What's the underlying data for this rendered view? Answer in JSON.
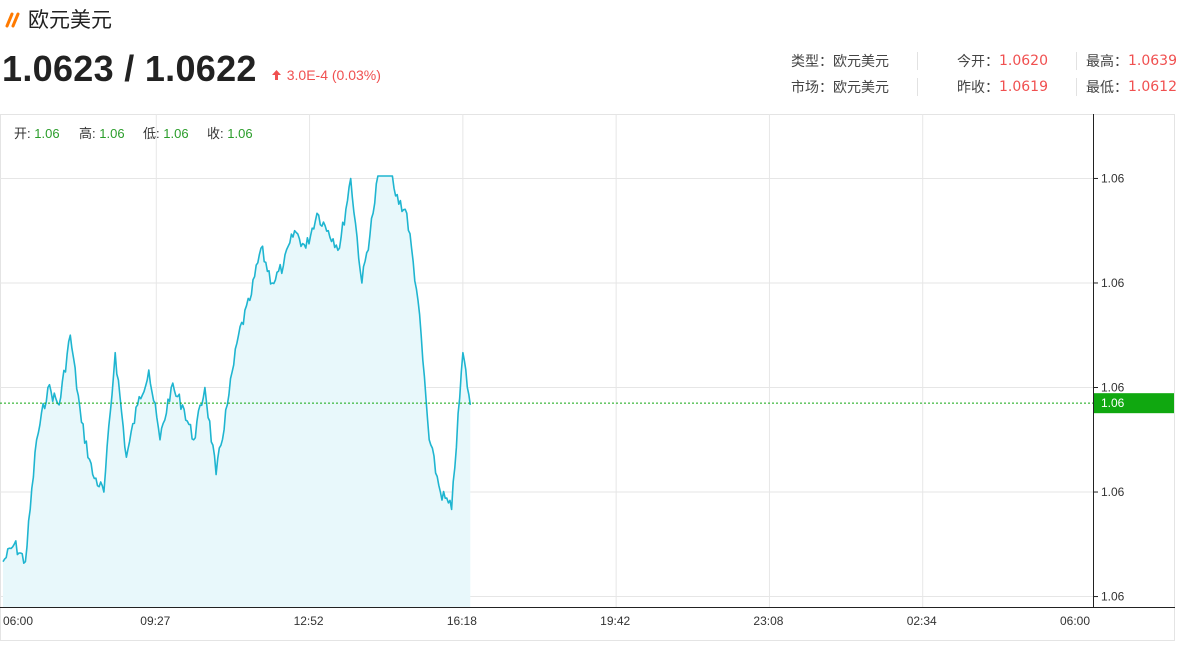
{
  "header": {
    "title": "欧元美元",
    "price": "1.0623 / 1.0622",
    "change": "3.0E-4 (0.03%)"
  },
  "info": {
    "type_label": "类型：",
    "type_value": "欧元美元",
    "market_label": "市场：",
    "market_value": "欧元美元",
    "open_label": "今开：",
    "open_value": "1.0620",
    "prev_close_label": "昨收：",
    "prev_close_value": "1.0619",
    "high_label": "最高：",
    "high_value": "1.0639",
    "low_label": "最低：",
    "low_value": "1.0612"
  },
  "ohlc": {
    "open_label": "开:",
    "open_value": "1.06",
    "high_label": "高:",
    "high_value": "1.06",
    "low_label": "低:",
    "low_value": "1.06",
    "close_label": "收:",
    "close_value": "1.06"
  },
  "colors": {
    "line": "#1fb5d0",
    "area": "#e8f8fb",
    "up": "#f05050",
    "green": "#2a9d2a",
    "current_tag": "#10a810",
    "grid": "#e6e6e6"
  },
  "chart_data": {
    "type": "area",
    "title": "",
    "xlabel": "",
    "ylabel": "",
    "x_ticks": [
      "06:00",
      "09:27",
      "12:52",
      "16:18",
      "19:42",
      "23:08",
      "02:34",
      "06:00"
    ],
    "y_ticks": [
      1.0612,
      1.0618,
      1.0624,
      1.063,
      1.0636
    ],
    "y_tick_labels": [
      "1.06",
      "1.06",
      "1.06",
      "1.06",
      "1.06"
    ],
    "ylim": [
      1.06114,
      1.06397
    ],
    "current_value": 1.06231,
    "current_label": "1.06",
    "grid": true,
    "series": [
      {
        "x": [
          "06:00",
          "06:15",
          "06:30",
          "06:45",
          "07:00",
          "07:15",
          "07:30",
          "07:45",
          "08:00",
          "08:15",
          "08:30",
          "08:45",
          "09:00",
          "09:15",
          "09:30",
          "09:45",
          "10:00",
          "10:15",
          "10:30",
          "10:45",
          "11:00",
          "11:15",
          "11:30",
          "11:45",
          "12:00",
          "12:15",
          "12:30",
          "12:45",
          "13:00",
          "13:15",
          "13:30",
          "13:45",
          "14:00",
          "14:15",
          "14:30",
          "14:45",
          "15:00",
          "15:15",
          "15:30",
          "15:45",
          "16:00",
          "16:15",
          "16:25"
        ],
        "values": [
          1.0614,
          1.0615,
          1.0614,
          1.0621,
          1.0624,
          1.0623,
          1.0627,
          1.0622,
          1.0619,
          1.0618,
          1.0626,
          1.062,
          1.0623,
          1.0625,
          1.0621,
          1.0624,
          1.0623,
          1.0621,
          1.0624,
          1.0619,
          1.0623,
          1.0627,
          1.0629,
          1.0632,
          1.063,
          1.0631,
          1.0633,
          1.0632,
          1.0634,
          1.0633,
          1.0632,
          1.0636,
          1.063,
          1.0634,
          1.0639,
          1.0635,
          1.0634,
          1.0629,
          1.0621,
          1.0618,
          1.0617,
          1.0626,
          1.0623
        ]
      }
    ]
  }
}
